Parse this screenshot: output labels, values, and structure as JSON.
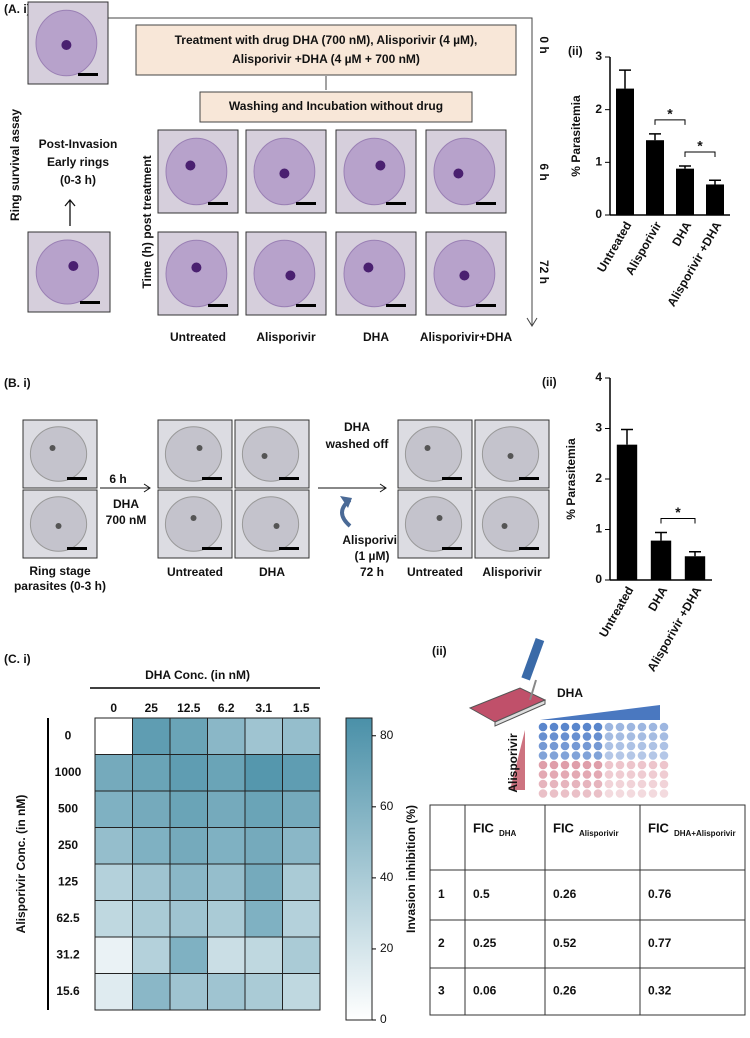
{
  "panel_a": {
    "label": "(A. i)",
    "side_label": "Ring survival assay",
    "stage_lines": [
      "Post-Invasion",
      "Early rings",
      "(0-3 h)"
    ],
    "treatment_lines": [
      "Treatment with drug DHA (700 nM), Alisporivir (4 µM),",
      "Alisporivir +DHA (4 µM + 700 nM)"
    ],
    "wash": "Washing and Incubation without drug",
    "time_axis": "Time (h) post treatment",
    "times": [
      "0 h",
      "6 h",
      "72 h"
    ],
    "columns": [
      "Untreated",
      "Alisporivir",
      "DHA",
      "Alisporivir+DHA"
    ]
  },
  "panel_b": {
    "label": "(B. i)",
    "ring_lines": [
      "Ring  stage",
      "parasites (0-3 h)"
    ],
    "step1_lines": [
      "6 h",
      "DHA",
      "700 nM"
    ],
    "step1_columns": [
      "Untreated",
      "DHA"
    ],
    "step2_top": [
      "DHA",
      "washed off"
    ],
    "step2_bottom": [
      "Alisporivir",
      "(1 µM)",
      "72 h"
    ],
    "step2_columns": [
      "Untreated",
      "Alisporivir"
    ]
  },
  "panel_c": {
    "panel_ii": "(ii)",
    "plate_x": "DHA",
    "plate_y": "Alisporivir"
  },
  "chart_data": [
    {
      "type": "bar",
      "panel": "(ii)",
      "ylabel": "% Parasitemia",
      "categories": [
        "Untreated",
        "Alisporivir",
        "DHA",
        "Alisporivir +DHA"
      ],
      "values": [
        2.4,
        1.42,
        0.88,
        0.58
      ],
      "errors": [
        0.35,
        0.12,
        0.05,
        0.08
      ],
      "color": "#000000",
      "ylim": [
        0,
        3
      ],
      "yticks": [
        0,
        1,
        2,
        3
      ],
      "annotations": [
        {
          "text": "*",
          "between": [
            1,
            2
          ]
        },
        {
          "text": "*",
          "between": [
            2,
            3
          ]
        }
      ]
    },
    {
      "type": "bar",
      "panel": "(ii)",
      "ylabel": "% Parasitemia",
      "categories": [
        "Untreated",
        "DHA",
        "Alisporivir +DHA"
      ],
      "values": [
        2.68,
        0.78,
        0.47
      ],
      "errors": [
        0.3,
        0.16,
        0.09
      ],
      "color": "#000000",
      "ylim": [
        0,
        4
      ],
      "yticks": [
        0,
        1,
        2,
        3,
        4
      ],
      "annotations": [
        {
          "text": "*",
          "between": [
            1,
            2
          ]
        }
      ]
    },
    {
      "type": "heatmap",
      "panel": "(C. i)",
      "title": "DHA Conc. (in nM)",
      "ylabel": "Alisporivir Conc. (in nM)",
      "x": [
        "0",
        "25",
        "12.5",
        "6.2",
        "3.1",
        "1.5"
      ],
      "y": [
        "0",
        "1000",
        "500",
        "250",
        "125",
        "62.5",
        "31.2",
        "15.6"
      ],
      "values": [
        [
          0,
          75,
          70,
          55,
          45,
          50
        ],
        [
          65,
          70,
          75,
          70,
          80,
          75
        ],
        [
          60,
          65,
          70,
          65,
          70,
          65
        ],
        [
          50,
          60,
          65,
          60,
          65,
          55
        ],
        [
          35,
          45,
          55,
          50,
          65,
          40
        ],
        [
          30,
          40,
          45,
          40,
          60,
          35
        ],
        [
          10,
          35,
          60,
          25,
          30,
          40
        ],
        [
          15,
          55,
          45,
          45,
          40,
          30
        ]
      ],
      "zlim": [
        0,
        85
      ],
      "zticks": [
        0,
        20,
        40,
        60,
        80
      ],
      "zlabel": "Invasion inhibition (%)",
      "colors": [
        "#ffffff",
        "#4a90a8"
      ]
    }
  ],
  "table": {
    "header": [
      {
        "main": "FIC",
        "sub": "DHA"
      },
      {
        "main": "FIC",
        "sub": "Alisporivir"
      },
      {
        "main": "FIC",
        "sub": "DHA+Alisporivir"
      }
    ],
    "rows": [
      [
        "1",
        "0.5",
        "0.26",
        "0.76"
      ],
      [
        "2",
        "0.25",
        "0.52",
        "0.77"
      ],
      [
        "3",
        "0.06",
        "0.26",
        "0.32"
      ]
    ]
  }
}
